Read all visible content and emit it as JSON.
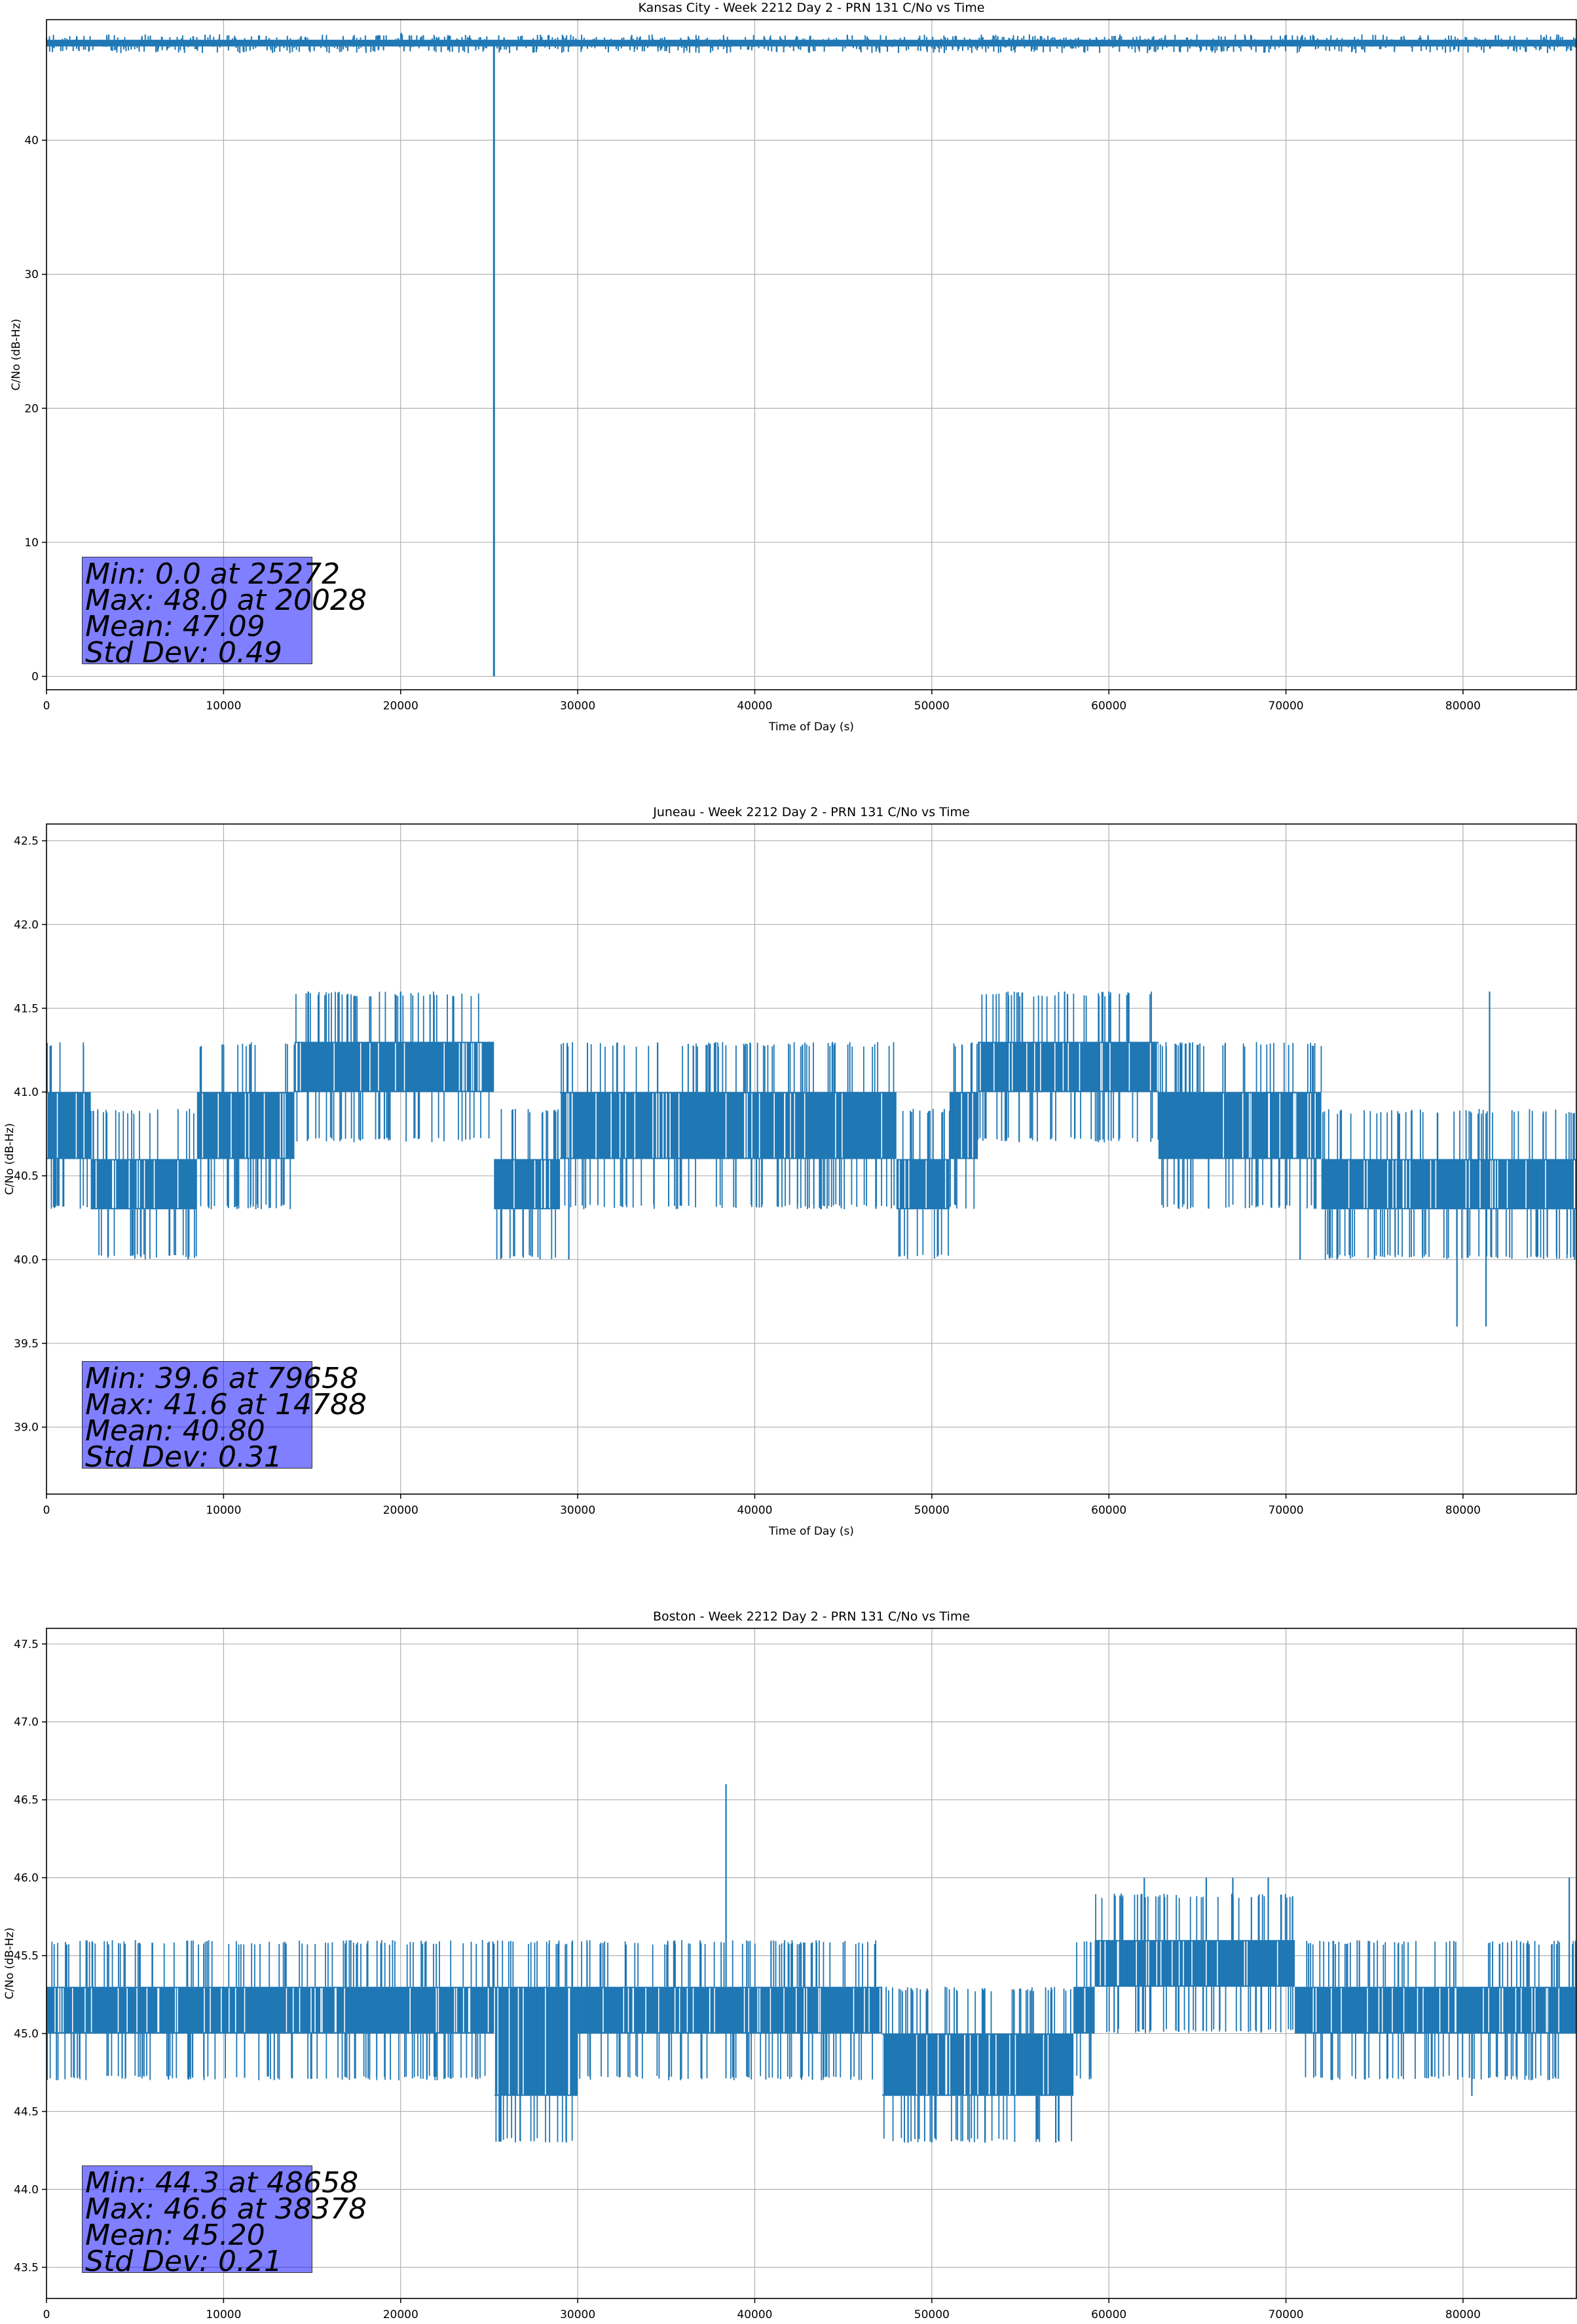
{
  "chart_data": [
    {
      "type": "line",
      "title": "Kansas City - Week 2212 Day 2 - PRN 131 C/No vs Time",
      "xlabel": "Time of Day (s)",
      "ylabel": "C/No (dB-Hz)",
      "xlim": [
        0,
        86400
      ],
      "ylim": [
        -1,
        49
      ],
      "xticks": [
        0,
        10000,
        20000,
        30000,
        40000,
        50000,
        60000,
        70000,
        80000
      ],
      "yticks": [
        0,
        10,
        20,
        30,
        40
      ],
      "ytick_labels": [
        "0",
        "10",
        "20",
        "30",
        "40"
      ],
      "grid": true,
      "color": "#1f77b4",
      "band": {
        "low": 47.0,
        "high": 47.5,
        "spike_low": 46.5,
        "spike_high": 48.0
      },
      "points": [
        [
          0,
          47.0
        ],
        [
          5000,
          47.1
        ],
        [
          10000,
          47.2
        ],
        [
          15000,
          47.4
        ],
        [
          20028,
          48.0
        ],
        [
          25000,
          47.4
        ],
        [
          25272,
          0.0
        ],
        [
          25400,
          47.3
        ],
        [
          30000,
          47.2
        ],
        [
          35000,
          47.4
        ],
        [
          40000,
          47.5
        ],
        [
          45000,
          47.4
        ],
        [
          50000,
          47.0
        ],
        [
          55000,
          46.9
        ],
        [
          60000,
          47.0
        ],
        [
          65000,
          47.0
        ],
        [
          70000,
          47.0
        ],
        [
          75000,
          47.1
        ],
        [
          80000,
          47.1
        ],
        [
          86400,
          47.0
        ]
      ],
      "stats": {
        "min": "Min: 0.0 at 25272",
        "max": "Max: 48.0 at 20028",
        "mean": "Mean: 47.09",
        "std": "Std Dev: 0.49"
      }
    },
    {
      "type": "line",
      "title": "Juneau - Week 2212 Day 2 - PRN 131 C/No vs Time",
      "xlabel": "Time of Day (s)",
      "ylabel": "C/No (dB-Hz)",
      "xlim": [
        0,
        86400
      ],
      "ylim": [
        38.6,
        42.6
      ],
      "xticks": [
        0,
        10000,
        20000,
        30000,
        40000,
        50000,
        60000,
        70000,
        80000
      ],
      "yticks": [
        39.0,
        39.5,
        40.0,
        40.5,
        41.0,
        41.5,
        42.0,
        42.5
      ],
      "ytick_labels": [
        "39.0",
        "39.5",
        "40.0",
        "40.5",
        "41.0",
        "41.5",
        "42.0",
        "42.5"
      ],
      "grid": true,
      "color": "#1f77b4",
      "segments": [
        {
          "x0": 0,
          "x1": 2500,
          "low": 40.6,
          "high": 41.0
        },
        {
          "x0": 2500,
          "x1": 8500,
          "low": 40.3,
          "high": 40.6
        },
        {
          "x0": 8500,
          "x1": 14000,
          "low": 40.6,
          "high": 41.0
        },
        {
          "x0": 14000,
          "x1": 25272,
          "low": 41.0,
          "high": 41.3
        },
        {
          "x0": 25272,
          "x1": 29000,
          "low": 40.3,
          "high": 40.6
        },
        {
          "x0": 29000,
          "x1": 48000,
          "low": 40.6,
          "high": 41.0
        },
        {
          "x0": 48000,
          "x1": 51000,
          "low": 40.3,
          "high": 40.6
        },
        {
          "x0": 51000,
          "x1": 52600,
          "low": 40.6,
          "high": 41.0
        },
        {
          "x0": 52600,
          "x1": 62800,
          "low": 41.0,
          "high": 41.3
        },
        {
          "x0": 62800,
          "x1": 72000,
          "low": 40.6,
          "high": 41.0
        },
        {
          "x0": 72000,
          "x1": 86400,
          "low": 40.3,
          "high": 40.6
        }
      ],
      "spikes": [
        [
          8000,
          40.0
        ],
        [
          14788,
          41.6
        ],
        [
          20000,
          41.6
        ],
        [
          29500,
          40.0
        ],
        [
          57500,
          41.6
        ],
        [
          60000,
          41.6
        ],
        [
          70800,
          40.0
        ],
        [
          75000,
          40.0
        ],
        [
          79658,
          39.6
        ],
        [
          81300,
          39.6
        ],
        [
          81500,
          41.6
        ],
        [
          86300,
          40.0
        ]
      ],
      "stats": {
        "min": "Min: 39.6 at 79658",
        "max": "Max: 41.6 at 14788",
        "mean": "Mean: 40.80",
        "std": "Std Dev: 0.31"
      }
    },
    {
      "type": "line",
      "title": "Boston - Week 2212 Day 2 - PRN 131 C/No vs Time",
      "xlabel": "Time of Day (s)",
      "ylabel": "C/No (dB-Hz)",
      "xlim": [
        0,
        86400
      ],
      "ylim": [
        43.3,
        47.6
      ],
      "xticks": [
        0,
        10000,
        20000,
        30000,
        40000,
        50000,
        60000,
        70000,
        80000
      ],
      "yticks": [
        43.5,
        44.0,
        44.5,
        45.0,
        45.5,
        46.0,
        46.5,
        47.0,
        47.5
      ],
      "ytick_labels": [
        "43.5",
        "44.0",
        "44.5",
        "45.0",
        "45.5",
        "46.0",
        "46.5",
        "47.0",
        "47.5"
      ],
      "grid": true,
      "color": "#1f77b4",
      "segments": [
        {
          "x0": 0,
          "x1": 25300,
          "low": 45.0,
          "high": 45.3
        },
        {
          "x0": 25300,
          "x1": 30000,
          "low": 44.6,
          "high": 45.3
        },
        {
          "x0": 30000,
          "x1": 47200,
          "low": 45.0,
          "high": 45.3
        },
        {
          "x0": 47200,
          "x1": 58000,
          "low": 44.6,
          "high": 45.0
        },
        {
          "x0": 58000,
          "x1": 59200,
          "low": 45.0,
          "high": 45.3
        },
        {
          "x0": 59200,
          "x1": 70500,
          "low": 45.3,
          "high": 45.6
        },
        {
          "x0": 70500,
          "x1": 86400,
          "low": 45.0,
          "high": 45.3
        }
      ],
      "spikes": [
        [
          38378,
          46.6
        ],
        [
          48658,
          44.3
        ],
        [
          50000,
          44.3
        ],
        [
          53000,
          44.3
        ],
        [
          57000,
          44.3
        ],
        [
          62000,
          46.0
        ],
        [
          65500,
          46.0
        ],
        [
          67000,
          46.0
        ],
        [
          69000,
          46.0
        ],
        [
          80500,
          44.6
        ],
        [
          86000,
          46.0
        ]
      ],
      "stats": {
        "min": "Min: 44.3 at 48658",
        "max": "Max: 46.6 at 38378",
        "mean": "Mean: 45.20",
        "std": "Std Dev: 0.21"
      }
    }
  ]
}
